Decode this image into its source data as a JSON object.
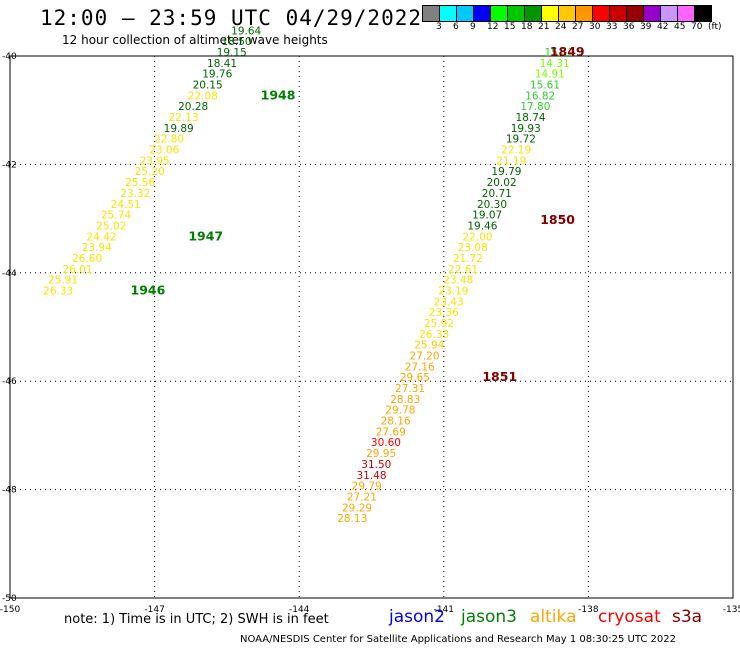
{
  "header": {
    "title": "12:00 – 23:59 UTC 04/29/2022",
    "subtitle": "12 hour collection of altimeter wave heights"
  },
  "color_legend": {
    "swatches": [
      "#808080",
      "#00ffff",
      "#00c8ff",
      "#0000ff",
      "#00ff00",
      "#00c800",
      "#009600",
      "#ffff00",
      "#ffc800",
      "#ff9600",
      "#ff0000",
      "#c80000",
      "#960000",
      "#9600c8",
      "#c896ff",
      "#ff64ff",
      "#000000"
    ],
    "tick_labels": [
      "3",
      "6",
      "9",
      "12",
      "15",
      "18",
      "21",
      "24",
      "27",
      "30",
      "33",
      "36",
      "39",
      "42",
      "45",
      "70",
      "(ft)"
    ]
  },
  "chart_data": {
    "type": "scatter",
    "title": "12:00 – 23:59 UTC 04/29/2022",
    "xlim": [
      -150,
      -135
    ],
    "ylim": [
      -50,
      -40
    ],
    "x_ticks": [
      "-150",
      "-147",
      "-144",
      "-141",
      "-138",
      "-135"
    ],
    "y_ticks": [
      "-40",
      "-42",
      "-44",
      "-46",
      "-48",
      "-50"
    ],
    "grid": true,
    "legend": "bottom",
    "series": [
      {
        "name": "jason3",
        "color": "#008000",
        "points": [
          {
            "x": -149.0,
            "y": -44.4,
            "label": "26.33",
            "color": "#ffe000"
          },
          {
            "x": -148.9,
            "y": -44.2,
            "label": "25.91",
            "color": "#ffe000"
          },
          {
            "x": -148.6,
            "y": -44.0,
            "label": "26.01",
            "color": "#ffe000"
          },
          {
            "x": -148.4,
            "y": -43.8,
            "label": "26.60",
            "color": "#ffe000"
          },
          {
            "x": -148.2,
            "y": -43.6,
            "label": "23.94",
            "color": "#ffe000"
          },
          {
            "x": -148.1,
            "y": -43.4,
            "label": "24.42",
            "color": "#ffe000"
          },
          {
            "x": -147.9,
            "y": -43.2,
            "label": "25.02",
            "color": "#ffe000"
          },
          {
            "x": -147.8,
            "y": -43.0,
            "label": "25.74",
            "color": "#ffe000"
          },
          {
            "x": -147.6,
            "y": -42.8,
            "label": "24.51",
            "color": "#ffe000"
          },
          {
            "x": -147.4,
            "y": -42.6,
            "label": "23.32",
            "color": "#ffe000"
          },
          {
            "x": -147.3,
            "y": -42.4,
            "label": "25.56",
            "color": "#ffe000"
          },
          {
            "x": -147.1,
            "y": -42.2,
            "label": "25.20",
            "color": "#ffe000"
          },
          {
            "x": -147.0,
            "y": -42.0,
            "label": "23.95",
            "color": "#ffe000"
          },
          {
            "x": -146.8,
            "y": -41.8,
            "label": "23.06",
            "color": "#ffe000"
          },
          {
            "x": -146.7,
            "y": -41.6,
            "label": "22.80",
            "color": "#ffe000"
          },
          {
            "x": -146.5,
            "y": -41.4,
            "label": "19.89",
            "color": "#006400"
          },
          {
            "x": -146.4,
            "y": -41.2,
            "label": "22.13",
            "color": "#ffe000"
          },
          {
            "x": -146.2,
            "y": -41.0,
            "label": "20.28",
            "color": "#006400"
          },
          {
            "x": -146.0,
            "y": -40.8,
            "label": "22.08",
            "color": "#ffe000"
          },
          {
            "x": -145.9,
            "y": -40.6,
            "label": "20.15",
            "color": "#006400"
          },
          {
            "x": -145.7,
            "y": -40.4,
            "label": "19.76",
            "color": "#006400"
          },
          {
            "x": -145.6,
            "y": -40.2,
            "label": "18.41",
            "color": "#006400"
          },
          {
            "x": -145.4,
            "y": -40.0,
            "label": "19.15",
            "color": "#006400"
          },
          {
            "x": -145.3,
            "y": -39.8,
            "label": "18.50",
            "color": "#006400"
          },
          {
            "x": -145.1,
            "y": -39.6,
            "label": "19.64",
            "color": "#006400"
          }
        ]
      },
      {
        "name": "cryosat",
        "color": "#ff0000",
        "points": [
          {
            "x": -138.6,
            "y": -40.0,
            "label": "15.12",
            "color": "#32cd32"
          },
          {
            "x": -138.7,
            "y": -40.2,
            "label": "14.31",
            "color": "#7cfc00"
          },
          {
            "x": -138.8,
            "y": -40.4,
            "label": "14.91",
            "color": "#7cfc00"
          },
          {
            "x": -138.9,
            "y": -40.6,
            "label": "15.61",
            "color": "#32cd32"
          },
          {
            "x": -139.0,
            "y": -40.8,
            "label": "16.82",
            "color": "#32cd32"
          },
          {
            "x": -139.1,
            "y": -41.0,
            "label": "17.80",
            "color": "#32cd32"
          },
          {
            "x": -139.2,
            "y": -41.2,
            "label": "18.74",
            "color": "#006400"
          },
          {
            "x": -139.3,
            "y": -41.4,
            "label": "19.93",
            "color": "#006400"
          },
          {
            "x": -139.4,
            "y": -41.6,
            "label": "19.72",
            "color": "#006400"
          },
          {
            "x": -139.5,
            "y": -41.8,
            "label": "22.19",
            "color": "#ffe000"
          },
          {
            "x": -139.6,
            "y": -42.0,
            "label": "21.19",
            "color": "#ffe000"
          },
          {
            "x": -139.7,
            "y": -42.2,
            "label": "19.79",
            "color": "#006400"
          },
          {
            "x": -139.8,
            "y": -42.4,
            "label": "20.02",
            "color": "#006400"
          },
          {
            "x": -139.9,
            "y": -42.6,
            "label": "20.71",
            "color": "#006400"
          },
          {
            "x": -140.0,
            "y": -42.8,
            "label": "20.30",
            "color": "#006400"
          },
          {
            "x": -140.1,
            "y": -43.0,
            "label": "19.07",
            "color": "#006400"
          },
          {
            "x": -140.2,
            "y": -43.2,
            "label": "19.46",
            "color": "#006400"
          },
          {
            "x": -140.3,
            "y": -43.4,
            "label": "22.00",
            "color": "#ffe000"
          },
          {
            "x": -140.4,
            "y": -43.6,
            "label": "23.08",
            "color": "#ffe000"
          },
          {
            "x": -140.5,
            "y": -43.8,
            "label": "21.72",
            "color": "#ffe000"
          },
          {
            "x": -140.6,
            "y": -44.0,
            "label": "22.61",
            "color": "#ffe000"
          },
          {
            "x": -140.7,
            "y": -44.2,
            "label": "23.48",
            "color": "#ffe000"
          },
          {
            "x": -140.8,
            "y": -44.4,
            "label": "23.19",
            "color": "#ffe000"
          },
          {
            "x": -140.9,
            "y": -44.6,
            "label": "23.43",
            "color": "#ffe000"
          },
          {
            "x": -141.0,
            "y": -44.8,
            "label": "23.36",
            "color": "#ffe000"
          },
          {
            "x": -141.1,
            "y": -45.0,
            "label": "25.92",
            "color": "#ffe000"
          },
          {
            "x": -141.2,
            "y": -45.2,
            "label": "26.33",
            "color": "#ffe000"
          },
          {
            "x": -141.3,
            "y": -45.4,
            "label": "25.94",
            "color": "#ffc800"
          },
          {
            "x": -141.4,
            "y": -45.6,
            "label": "27.20",
            "color": "#ffa500"
          },
          {
            "x": -141.5,
            "y": -45.8,
            "label": "27.16",
            "color": "#ffa500"
          },
          {
            "x": -141.6,
            "y": -46.0,
            "label": "29.65",
            "color": "#ffa500"
          },
          {
            "x": -141.7,
            "y": -46.2,
            "label": "27.31",
            "color": "#ffa500"
          },
          {
            "x": -141.8,
            "y": -46.4,
            "label": "28.83",
            "color": "#ffa500"
          },
          {
            "x": -141.9,
            "y": -46.6,
            "label": "29.78",
            "color": "#ffa500"
          },
          {
            "x": -142.0,
            "y": -46.8,
            "label": "28.16",
            "color": "#ffa500"
          },
          {
            "x": -142.1,
            "y": -47.0,
            "label": "27.69",
            "color": "#ffa500"
          },
          {
            "x": -142.2,
            "y": -47.2,
            "label": "30.60",
            "color": "#ff0000"
          },
          {
            "x": -142.3,
            "y": -47.4,
            "label": "29.95",
            "color": "#ffa500"
          },
          {
            "x": -142.4,
            "y": -47.6,
            "label": "31.50",
            "color": "#c80000"
          },
          {
            "x": -142.5,
            "y": -47.8,
            "label": "31.48",
            "color": "#c80000"
          },
          {
            "x": -142.6,
            "y": -48.0,
            "label": "29.79",
            "color": "#ffa500"
          },
          {
            "x": -142.7,
            "y": -48.2,
            "label": "27.21",
            "color": "#ffa500"
          },
          {
            "x": -142.8,
            "y": -48.4,
            "label": "29.29",
            "color": "#ffa500"
          },
          {
            "x": -142.9,
            "y": -48.6,
            "label": "28.13",
            "color": "#ffa500"
          }
        ]
      }
    ],
    "time_labels": [
      {
        "x": -144.8,
        "y": -40.8,
        "label": "1948",
        "color": "#008000"
      },
      {
        "x": -146.3,
        "y": -43.4,
        "label": "1947",
        "color": "#008000"
      },
      {
        "x": -147.5,
        "y": -44.4,
        "label": "1946",
        "color": "#008000"
      },
      {
        "x": -138.8,
        "y": -40.0,
        "label": "1849",
        "color": "#800000"
      },
      {
        "x": -139.0,
        "y": -43.1,
        "label": "1850",
        "color": "#800000"
      },
      {
        "x": -140.2,
        "y": -46.0,
        "label": "1851",
        "color": "#800000"
      }
    ]
  },
  "footer": {
    "note": "note:  1) Time is in UTC;  2) SWH is in feet",
    "satellites": [
      {
        "name": "jason2",
        "color": "#0000ff"
      },
      {
        "name": "jason3",
        "color": "#008000"
      },
      {
        "name": "altika",
        "color": "#ffa500"
      },
      {
        "name": "cryosat",
        "color": "#ff0000"
      },
      {
        "name": "s3a",
        "color": "#800000"
      }
    ],
    "credit": "NOAA/NESDIS Center for Satellite Applications and Research   May  1 08:30:25 UTC 2022"
  }
}
